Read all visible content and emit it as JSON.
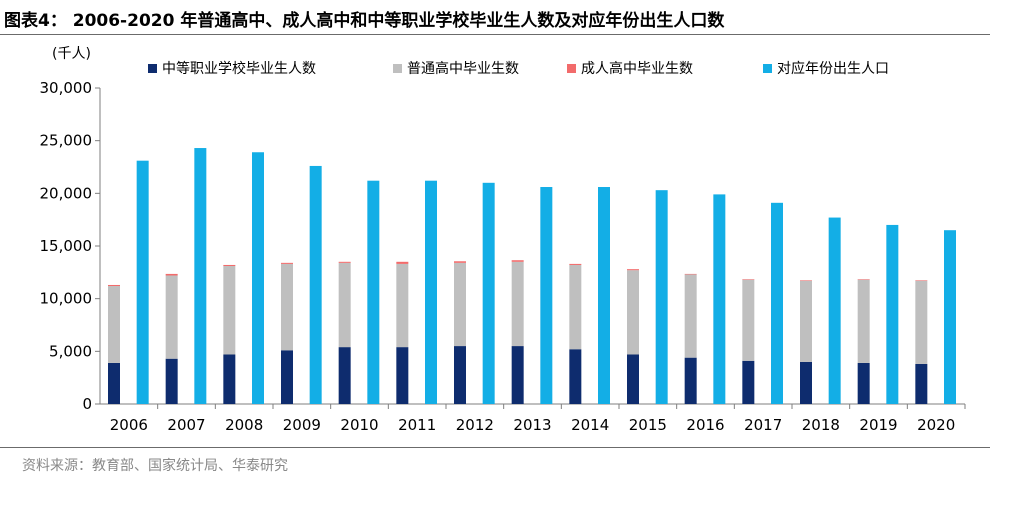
{
  "figure": {
    "title": "图表4：  2006-2020 年普通高中、成人高中和中等职业学校毕业生人数及对应年份出生人口数",
    "source": "资料来源：教育部、国家统计局、华泰研究"
  },
  "chart_data": {
    "type": "bar",
    "stacked_series_group": [
      "中等职业学校毕业生人数",
      "普通高中毕业生数",
      "成人高中毕业生数"
    ],
    "y_unit_label": "(千人)",
    "ylim": [
      0,
      30000
    ],
    "y_ticks": [
      "0",
      "5,000",
      "10,000",
      "15,000",
      "20,000",
      "25,000",
      "30,000"
    ],
    "y_tick_values": [
      0,
      5000,
      10000,
      15000,
      20000,
      25000,
      30000
    ],
    "grid": false,
    "legend_position": "top",
    "categories": [
      "2006",
      "2007",
      "2008",
      "2009",
      "2010",
      "2011",
      "2012",
      "2013",
      "2014",
      "2015",
      "2016",
      "2017",
      "2018",
      "2019",
      "2020"
    ],
    "series": [
      {
        "name": "中等职业学校毕业生人数",
        "color": "#0e2c6e",
        "values": [
          3900,
          4300,
          4700,
          5100,
          5400,
          5400,
          5500,
          5500,
          5200,
          4700,
          4400,
          4100,
          4000,
          3900,
          3800
        ]
      },
      {
        "name": "普通高中毕业生数",
        "color": "#bfbfbf",
        "values": [
          7300,
          7900,
          8400,
          8200,
          8000,
          7900,
          7900,
          8000,
          8000,
          8000,
          7900,
          7700,
          7700,
          7900,
          7900
        ]
      },
      {
        "name": "成人高中毕业生数",
        "color": "#f26b6b",
        "values": [
          100,
          150,
          100,
          100,
          100,
          200,
          150,
          150,
          100,
          100,
          50,
          50,
          50,
          50,
          50
        ]
      },
      {
        "name": "对应年份出生人口",
        "color": "#13aee6",
        "values": [
          23100,
          24300,
          23900,
          22600,
          21200,
          21200,
          21000,
          20600,
          20600,
          20300,
          19900,
          19100,
          17700,
          17000,
          16500
        ]
      }
    ]
  }
}
